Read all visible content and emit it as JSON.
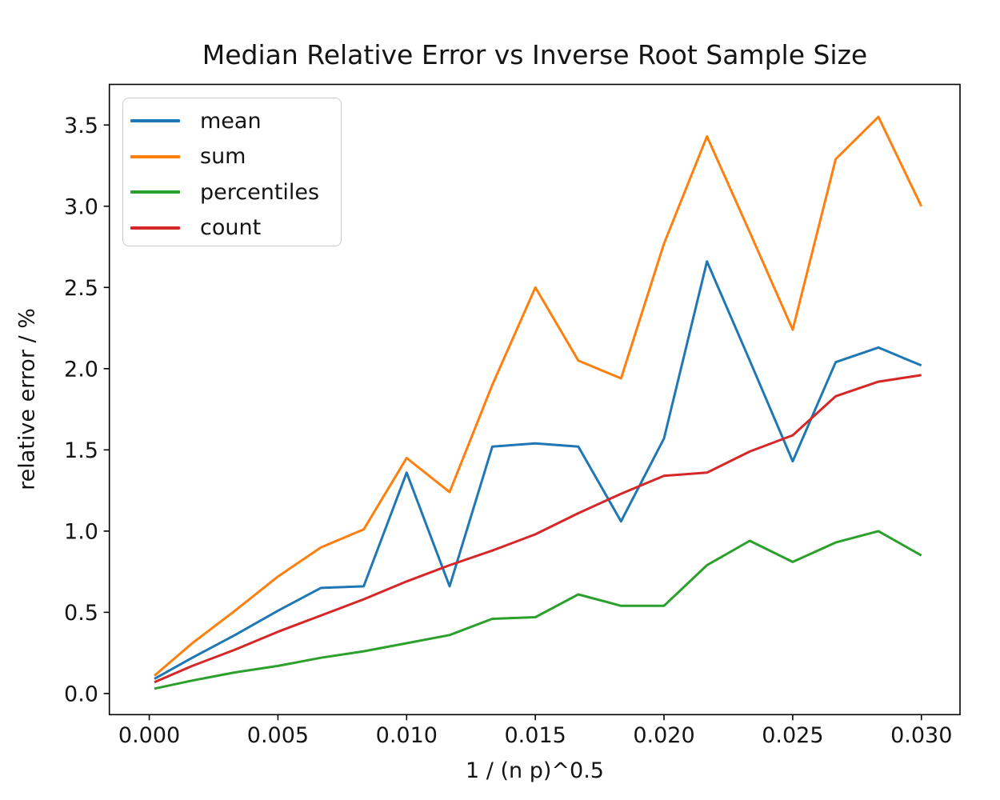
{
  "chart_data": {
    "type": "line",
    "title": "Median Relative Error vs Inverse Root Sample Size",
    "xlabel": "1 / (n p)^0.5",
    "ylabel": "relative error / %",
    "grid": false,
    "legend_position": "upper left",
    "xlim": [
      -0.00155,
      0.0315
    ],
    "ylim": [
      -0.13,
      3.75
    ],
    "x_ticks": {
      "values": [
        0.0,
        0.005,
        0.01,
        0.015,
        0.02,
        0.025,
        0.03
      ],
      "labels": [
        "0.000",
        "0.005",
        "0.010",
        "0.015",
        "0.020",
        "0.025",
        "0.030"
      ]
    },
    "y_ticks": {
      "values": [
        0.0,
        0.5,
        1.0,
        1.5,
        2.0,
        2.5,
        3.0,
        3.5
      ],
      "labels": [
        "0.0",
        "0.5",
        "1.0",
        "1.5",
        "2.0",
        "2.5",
        "3.0",
        "3.5"
      ]
    },
    "x": [
      0.0002,
      0.00167,
      0.00333,
      0.005,
      0.00667,
      0.00833,
      0.01,
      0.01167,
      0.01333,
      0.015,
      0.01667,
      0.01833,
      0.02,
      0.02167,
      0.02333,
      0.025,
      0.02667,
      0.02833,
      0.03
    ],
    "series": [
      {
        "name": "mean",
        "color": "#1f77b4",
        "values": [
          0.09,
          0.22,
          0.36,
          0.51,
          0.65,
          0.66,
          1.36,
          0.66,
          1.52,
          1.54,
          1.52,
          1.06,
          1.57,
          2.66,
          2.05,
          1.43,
          2.04,
          2.13,
          2.02
        ]
      },
      {
        "name": "sum",
        "color": "#ff7f0e",
        "values": [
          0.11,
          0.31,
          0.51,
          0.72,
          0.9,
          1.01,
          1.45,
          1.24,
          1.9,
          2.5,
          2.05,
          1.94,
          2.77,
          3.43,
          2.84,
          2.24,
          3.29,
          3.55,
          3.0
        ]
      },
      {
        "name": "percentiles",
        "color": "#2ca02c",
        "values": [
          0.03,
          0.08,
          0.13,
          0.17,
          0.22,
          0.26,
          0.31,
          0.36,
          0.46,
          0.47,
          0.61,
          0.54,
          0.54,
          0.79,
          0.94,
          0.81,
          0.93,
          1.0,
          0.85
        ]
      },
      {
        "name": "count",
        "color": "#d62728",
        "values": [
          0.07,
          0.17,
          0.27,
          0.38,
          0.48,
          0.58,
          0.69,
          0.79,
          0.88,
          0.98,
          1.11,
          1.23,
          1.34,
          1.36,
          1.49,
          1.59,
          1.83,
          1.92,
          1.96
        ]
      }
    ]
  }
}
